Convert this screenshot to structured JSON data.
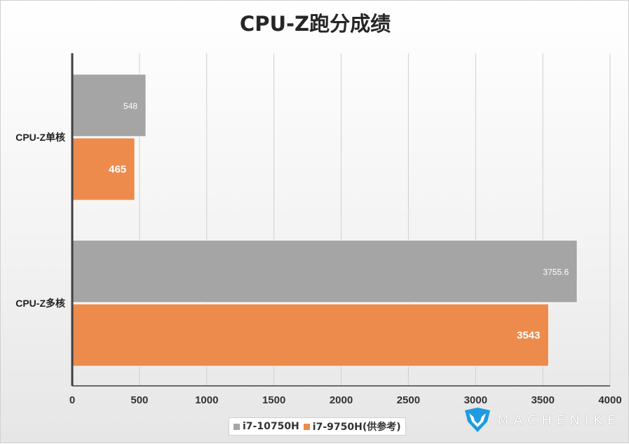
{
  "chart_data": {
    "type": "bar",
    "orientation": "horizontal",
    "title": "CPU-Z跑分成绩",
    "categories": [
      "CPU-Z单核",
      "CPU-Z多核"
    ],
    "series": [
      {
        "name": "i7-10750H",
        "color": "#a5a5a5",
        "values": [
          548,
          3755.6
        ],
        "labels": [
          "548",
          "3755.6"
        ]
      },
      {
        "name": "i7-9750H(供参考)",
        "color": "#ed8b4c",
        "values": [
          465,
          3543
        ],
        "labels": [
          "465",
          "3543"
        ]
      }
    ],
    "xlim": [
      0,
      4000
    ],
    "x_ticks": [
      "0",
      "500",
      "1000",
      "1500",
      "2000",
      "2500",
      "3000",
      "3500",
      "4000"
    ],
    "grid": true,
    "legend_position": "bottom"
  },
  "brand": {
    "logo": "machenike-logo-icon",
    "text": "MACHENIKE"
  }
}
